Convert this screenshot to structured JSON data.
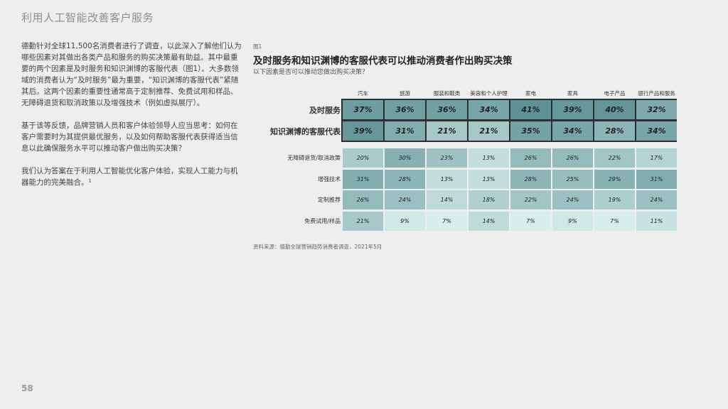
{
  "header": {
    "title": "利用人工智能改善客户服务"
  },
  "body": {
    "paragraphs": [
      "德勤针对全球11,500名消费者进行了调查，以此深入了解他们认为哪些因素对其做出各类产品和服务的购买决策最有助益。其中最重要的两个因素是及时服务和知识渊博的客服代表（图1）。大多数领域的消费者认为“及时服务”最为重要，“知识渊博的客服代表”紧随其后。这两个因素的重要性通常高于定制推荐、免费试用和样品、无障碍退货和取消政策以及增强技术（例如虚拟展厅）。",
      "基于该等反馈，品牌营销人员和客户体验领导人应当思考：如何在客户需要时为其提供最优服务，以及如何帮助客服代表获得适当信息以此确保服务水平可以推动客户做出购买决策？",
      "我们认为答案在于利用人工智能优化客户体验，实现人工能力与机器能力的完美融合。¹"
    ]
  },
  "figure": {
    "label": "图1",
    "title": "及时服务和知识渊博的客服代表可以推动消费者作出购买决策",
    "subtitle": "以下因素是否可以推动您做出购买决策？",
    "source": "资料来源：德勤全球营销趋势消费者调查，2021年5月"
  },
  "chart_data": {
    "type": "heatmap",
    "title": "及时服务和知识渊博的客服代表可以推动消费者作出购买决策",
    "columns": [
      "汽车",
      "旅游",
      "服装和鞋类",
      "美容和个人护理",
      "家电",
      "家具",
      "电子产品",
      "银行产品和服务"
    ],
    "rows": [
      {
        "label": "及时服务",
        "group": "main",
        "values": [
          37,
          36,
          36,
          34,
          41,
          39,
          40,
          32
        ],
        "display": [
          "37%",
          "36%",
          "36%",
          "34%",
          "41%",
          "39%",
          "40%",
          "32%"
        ]
      },
      {
        "label": "知识渊博的客服代表",
        "group": "main",
        "values": [
          39,
          31,
          21,
          21,
          35,
          34,
          28,
          34
        ],
        "display": [
          "39%",
          "31%",
          "21%",
          "21%",
          "35%",
          "34%",
          "28%",
          "34%"
        ]
      },
      {
        "label": "无障碍退货/取消政策",
        "group": "sub",
        "values": [
          20,
          30,
          23,
          13,
          26,
          26,
          22,
          17
        ],
        "display": [
          "20%",
          "30%",
          "23%",
          "13%",
          "26%",
          "26%",
          "22%",
          "17%"
        ]
      },
      {
        "label": "增强技术",
        "group": "sub",
        "values": [
          31,
          28,
          13,
          13,
          28,
          25,
          29,
          31
        ],
        "display": [
          "31%",
          "28%",
          "13%",
          "13%",
          "28%",
          "25%",
          "29%",
          "31%"
        ]
      },
      {
        "label": "定制推荐",
        "group": "sub",
        "values": [
          26,
          24,
          14,
          18,
          22,
          24,
          19,
          24
        ],
        "display": [
          "26%",
          "24%",
          "14%",
          "18%",
          "22%",
          "24%",
          "19%",
          "24%"
        ]
      },
      {
        "label": "免费试用/样品",
        "group": "sub",
        "values": [
          21,
          9,
          7,
          14,
          7,
          9,
          7,
          11
        ],
        "display": [
          "21%",
          "9%",
          "7%",
          "14%",
          "7%",
          "9%",
          "7%",
          "11%"
        ]
      }
    ],
    "colors": {
      "low": "#d7eeec",
      "high": "#5f9296"
    }
  },
  "page": {
    "number": "58"
  }
}
